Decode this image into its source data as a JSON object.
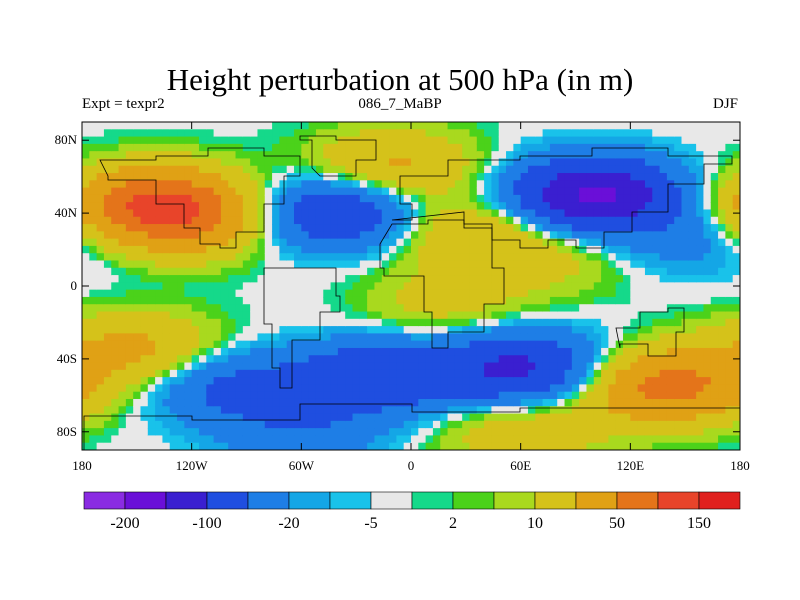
{
  "title": "Height perturbation at 500 hPa (in m)",
  "subtitle_left": "Expt = texpr2",
  "subtitle_center": "086_7_MaBP",
  "subtitle_right": "DJF",
  "lat_ticks": [
    {
      "value": 80,
      "label": "80N"
    },
    {
      "value": 40,
      "label": "40N"
    },
    {
      "value": 0,
      "label": "0"
    },
    {
      "value": -40,
      "label": "40S"
    },
    {
      "value": -80,
      "label": "80S"
    }
  ],
  "lon_ticks": [
    {
      "value": -180,
      "label": "180"
    },
    {
      "value": -120,
      "label": "120W"
    },
    {
      "value": -60,
      "label": "60W"
    },
    {
      "value": 0,
      "label": "0"
    },
    {
      "value": 60,
      "label": "60E"
    },
    {
      "value": 120,
      "label": "120E"
    },
    {
      "value": 180,
      "label": "180"
    }
  ],
  "colorbar": {
    "colors": [
      "#8a2be2",
      "#6a0fd8",
      "#3a1fd0",
      "#1f4ee0",
      "#1e7ee6",
      "#14a6e6",
      "#19c2ea",
      "#e8e8e8",
      "#15d98a",
      "#4bd21a",
      "#a9d91e",
      "#d5c21a",
      "#e0a115",
      "#e4741a",
      "#e8442a",
      "#e0201e"
    ],
    "labels": [
      "-200",
      "-100",
      "-20",
      "-5",
      "2",
      "10",
      "50",
      "150"
    ]
  },
  "field_anomalies": [
    {
      "lon": -140,
      "lat": 45,
      "value": 140
    },
    {
      "lon": -120,
      "lat": 35,
      "value": 60
    },
    {
      "lon": -40,
      "lat": 40,
      "value": -100
    },
    {
      "lon": -10,
      "lat": 65,
      "value": 60
    },
    {
      "lon": 30,
      "lat": 30,
      "value": 50
    },
    {
      "lon": 100,
      "lat": 50,
      "value": -160
    },
    {
      "lon": 80,
      "lat": 15,
      "value": 25
    },
    {
      "lon": -150,
      "lat": -35,
      "value": 60
    },
    {
      "lon": -100,
      "lat": -55,
      "value": -60
    },
    {
      "lon": -20,
      "lat": -50,
      "value": -90
    },
    {
      "lon": 60,
      "lat": -45,
      "value": -110
    },
    {
      "lon": 20,
      "lat": -10,
      "value": 30
    },
    {
      "lon": 140,
      "lat": -55,
      "value": 120
    },
    {
      "lon": -60,
      "lat": -80,
      "value": -40
    },
    {
      "lon": 60,
      "lat": -80,
      "value": 40
    },
    {
      "lon": 150,
      "lat": 25,
      "value": -30
    }
  ]
}
